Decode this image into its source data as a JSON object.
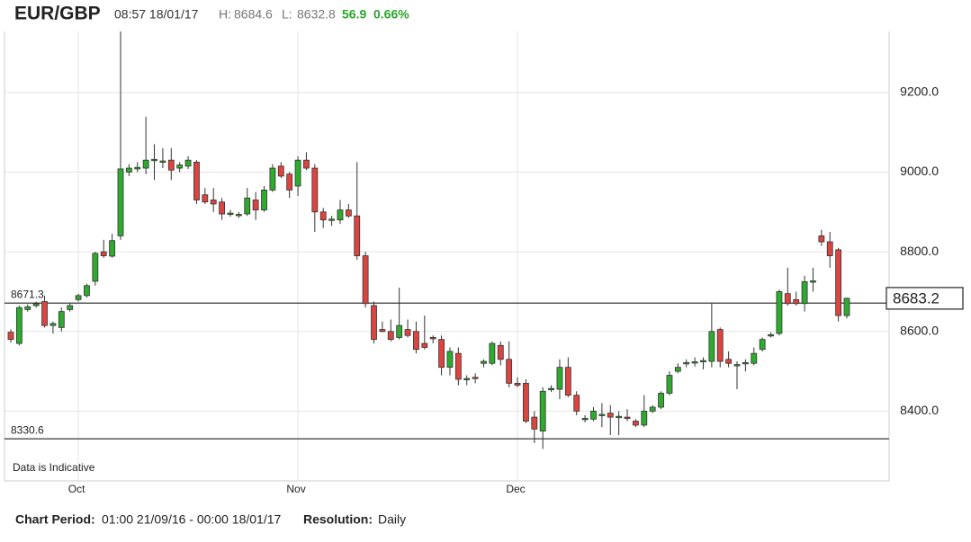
{
  "chart_data": {
    "type": "candlestick",
    "title": "EUR/GBP",
    "timestamp": "08:57 18/01/17",
    "high_label": "H:",
    "low_label": "L:",
    "change": 56.9,
    "change_pct": "0.66%",
    "note": "Data is Indicative",
    "period_label": "Chart Period:",
    "period": "01:00 21/09/16 - 00:00 18/01/17",
    "resolution_label": "Resolution:",
    "resolution": "Daily",
    "up_color": "#2eaa2e",
    "down_color": "#dc453f",
    "ylim": [
      8225,
      9353
    ],
    "yticks": [
      {
        "value": 8400,
        "label": "8400.0"
      },
      {
        "value": 8600,
        "label": "8600.0"
      },
      {
        "value": 8800,
        "label": "8800.0"
      },
      {
        "value": 9000,
        "label": "9000.0"
      },
      {
        "value": 9200,
        "label": "9200.0"
      }
    ],
    "reference_lines": [
      8671.3,
      8330.6
    ],
    "grid": true,
    "categories": [
      null,
      null,
      null,
      null,
      null,
      null,
      null,
      null,
      "Oct",
      null,
      null,
      null,
      null,
      null,
      null,
      null,
      null,
      null,
      null,
      null,
      null,
      null,
      null,
      null,
      null,
      null,
      null,
      null,
      null,
      null,
      null,
      null,
      null,
      null,
      "Nov",
      null,
      null,
      null,
      null,
      null,
      null,
      null,
      null,
      null,
      null,
      null,
      null,
      null,
      null,
      null,
      null,
      null,
      null,
      null,
      null,
      null,
      null,
      null,
      null,
      null,
      "Dec",
      null,
      null,
      null,
      null,
      null,
      null,
      null,
      null,
      null,
      null,
      null,
      null,
      null,
      null,
      null,
      null,
      null,
      null,
      null,
      null,
      null,
      null,
      null,
      null,
      null,
      null,
      null,
      null,
      null,
      null,
      null,
      null,
      null,
      null,
      null,
      null,
      null,
      null,
      null
    ],
    "open": [
      8598,
      8570,
      8655,
      8665,
      8675,
      8615,
      8610,
      8655,
      8680,
      8690,
      8726,
      8800,
      8789,
      8840,
      9000,
      9008,
      9010,
      9030,
      9025,
      9030,
      9010,
      9015,
      9025,
      8943,
      8930,
      8925,
      8895,
      8892,
      8895,
      8930,
      8905,
      8955,
      9015,
      8995,
      8965,
      9030,
      9010,
      8900,
      8880,
      8880,
      8905,
      8890,
      8790,
      8665,
      8605,
      8600,
      8585,
      8605,
      8600,
      8570,
      8585,
      8580,
      8510,
      8545,
      8480,
      8485,
      8520,
      8520,
      8565,
      8530,
      8470,
      8470,
      8385,
      8350,
      8455,
      8455,
      8510,
      8440,
      8380,
      8380,
      8390,
      8395,
      8385,
      8385,
      8375,
      8365,
      8400,
      8410,
      8445,
      8500,
      8520,
      8522,
      8525,
      8525,
      8605,
      8530,
      8515,
      8520,
      8520,
      8555,
      8590,
      8595,
      8695,
      8680,
      8670,
      8725,
      8840,
      8825,
      8805,
      8640
    ],
    "high": [
      8605,
      8665,
      8668,
      8675,
      8690,
      8625,
      8660,
      8670,
      8695,
      8720,
      8800,
      8830,
      8845,
      9353,
      9020,
      9025,
      9139,
      9070,
      9060,
      9060,
      9025,
      9040,
      9030,
      8960,
      8960,
      8935,
      8905,
      8900,
      8960,
      8950,
      8965,
      9020,
      9025,
      9000,
      9040,
      9050,
      9020,
      8910,
      8890,
      8930,
      8920,
      9025,
      8800,
      8675,
      8625,
      8630,
      8710,
      8630,
      8625,
      8640,
      8590,
      8590,
      8560,
      8560,
      8490,
      8495,
      8530,
      8575,
      8575,
      8575,
      8485,
      8480,
      8400,
      8460,
      8465,
      8530,
      8535,
      8450,
      8390,
      8410,
      8420,
      8415,
      8400,
      8405,
      8380,
      8440,
      8415,
      8450,
      8500,
      8520,
      8530,
      8535,
      8535,
      8670,
      8610,
      8550,
      8525,
      8530,
      8560,
      8585,
      8598,
      8705,
      8760,
      8700,
      8740,
      8760,
      8855,
      8850,
      8810,
      8684.6
    ],
    "low": [
      8572,
      8565,
      8650,
      8660,
      8610,
      8595,
      8600,
      8650,
      8675,
      8685,
      8715,
      8785,
      8785,
      8830,
      8990,
      9000,
      8995,
      8980,
      9010,
      8980,
      9000,
      9008,
      8920,
      8920,
      8900,
      8880,
      8888,
      8885,
      8890,
      8880,
      8900,
      8950,
      8985,
      8935,
      8940,
      9005,
      8850,
      8860,
      8865,
      8870,
      8885,
      8780,
      8660,
      8570,
      8598,
      8575,
      8580,
      8585,
      8545,
      8555,
      8570,
      8490,
      8490,
      8465,
      8465,
      8470,
      8510,
      8515,
      8515,
      8460,
      8460,
      8370,
      8320,
      8305,
      8448,
      8430,
      8435,
      8390,
      8372,
      8375,
      8360,
      8340,
      8340,
      8375,
      8360,
      8360,
      8395,
      8405,
      8440,
      8495,
      8510,
      8512,
      8505,
      8510,
      8510,
      8510,
      8455,
      8500,
      8515,
      8550,
      8585,
      8590,
      8665,
      8665,
      8650,
      8700,
      8815,
      8760,
      8625,
      8632.8
    ],
    "close": [
      8580,
      8660,
      8662,
      8670,
      8615,
      8620,
      8650,
      8665,
      8690,
      8715,
      8796,
      8790,
      8828,
      9008,
      9010,
      9012,
      9030,
      9032,
      9028,
      9005,
      9018,
      9030,
      8930,
      8925,
      8920,
      8895,
      8897,
      8894,
      8935,
      8905,
      8955,
      9010,
      8990,
      8955,
      9030,
      9010,
      8900,
      8880,
      8882,
      8905,
      8890,
      8790,
      8670,
      8580,
      8600,
      8580,
      8615,
      8590,
      8555,
      8560,
      8583,
      8510,
      8550,
      8480,
      8482,
      8483,
      8525,
      8570,
      8530,
      8470,
      8465,
      8375,
      8355,
      8450,
      8457,
      8510,
      8440,
      8400,
      8382,
      8400,
      8392,
      8385,
      8387,
      8383,
      8365,
      8400,
      8410,
      8445,
      8490,
      8510,
      8522,
      8524,
      8527,
      8600,
      8525,
      8520,
      8517,
      8522,
      8545,
      8580,
      8592,
      8700,
      8670,
      8670,
      8725,
      8727,
      8825,
      8790,
      8640,
      8683.2
    ]
  }
}
